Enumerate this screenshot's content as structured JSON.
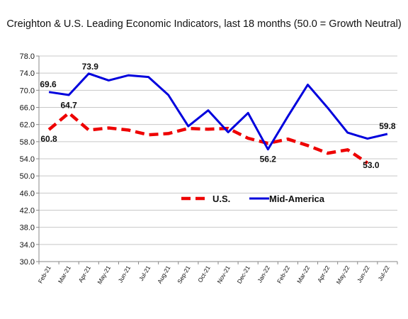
{
  "chart_data": {
    "type": "line",
    "title": "Creighton & U.S. Leading Economic Indicators, last 18 months (50.0 = Growth Neutral)",
    "xlabel": "",
    "ylabel": "",
    "ylim": [
      30.0,
      78.0
    ],
    "yticks": [
      "30.0",
      "34.0",
      "38.0",
      "42.0",
      "46.0",
      "50.0",
      "54.0",
      "58.0",
      "62.0",
      "66.0",
      "70.0",
      "74.0",
      "78.0"
    ],
    "categories": [
      "Feb-21",
      "Mar-21",
      "Apr-21",
      "May-21",
      "Jun-21",
      "Jul-21",
      "Aug-21",
      "Sep-21",
      "Oct-21",
      "Nov-21",
      "Dec-21",
      "Jan-22",
      "Feb-22",
      "Mar-22",
      "Apr-22",
      "May-22",
      "Jun-22",
      "Jul-22"
    ],
    "grid": true,
    "legend_position": "center",
    "series": [
      {
        "name": "U.S.",
        "color": "#ee0000",
        "style": "dashed",
        "values": [
          60.8,
          64.7,
          60.7,
          61.2,
          60.7,
          59.6,
          59.9,
          61.1,
          60.9,
          61.1,
          58.8,
          57.6,
          58.6,
          57.1,
          55.3,
          56.1,
          53.0,
          null
        ]
      },
      {
        "name": "Mid-America",
        "color": "#0000dd",
        "style": "solid",
        "values": [
          69.6,
          68.9,
          73.9,
          72.3,
          73.5,
          73.1,
          68.9,
          61.6,
          65.3,
          60.2,
          64.7,
          56.2,
          63.9,
          71.3,
          65.9,
          60.1,
          58.7,
          59.8
        ]
      }
    ],
    "data_labels": [
      {
        "series": "Mid-America",
        "index": 0,
        "text": "69.6"
      },
      {
        "series": "U.S.",
        "index": 1,
        "text": "64.7"
      },
      {
        "series": "Mid-America",
        "index": 2,
        "text": "73.9"
      },
      {
        "series": "U.S.",
        "index": 0,
        "text": "60.8"
      },
      {
        "series": "Mid-America",
        "index": 11,
        "text": "56.2"
      },
      {
        "series": "Mid-America",
        "index": 17,
        "text": "59.8"
      },
      {
        "series": "U.S.",
        "index": 16,
        "text": "53.0"
      }
    ]
  }
}
